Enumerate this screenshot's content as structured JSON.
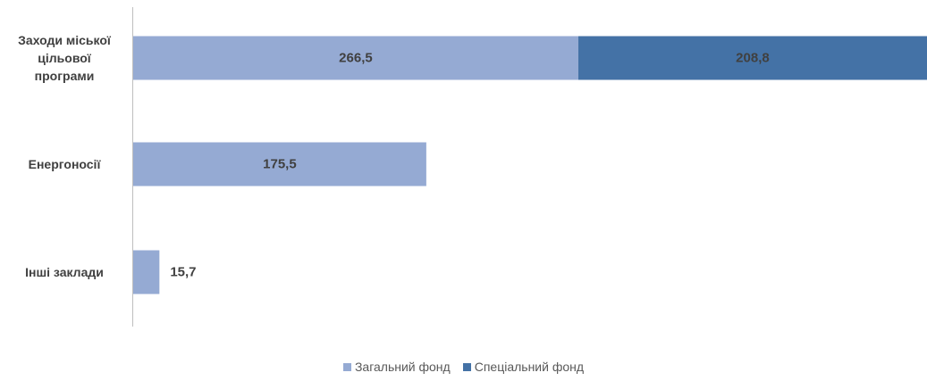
{
  "chart_data": {
    "type": "bar",
    "orientation": "horizontal",
    "stacked": true,
    "categories": [
      "Заходи міської цільової програми",
      "Енергоносії",
      "Інші заклади"
    ],
    "category_lines": [
      [
        "Заходи міської",
        "цільової",
        "програми"
      ],
      [
        "Енергоносії"
      ],
      [
        "Інші заклади"
      ]
    ],
    "series": [
      {
        "name": "Загальний фонд",
        "color": "#95aad3",
        "values": [
          266.5,
          175.5,
          15.7
        ],
        "labels": [
          "266,5",
          "175,5",
          "15,7"
        ]
      },
      {
        "name": "Спеціальний фонд",
        "color": "#4472a6",
        "values": [
          208.8,
          0,
          0
        ],
        "labels": [
          "208,8",
          "",
          ""
        ]
      }
    ],
    "xlim": [
      0,
      475.3
    ],
    "grid": false,
    "legend_position": "bottom"
  }
}
